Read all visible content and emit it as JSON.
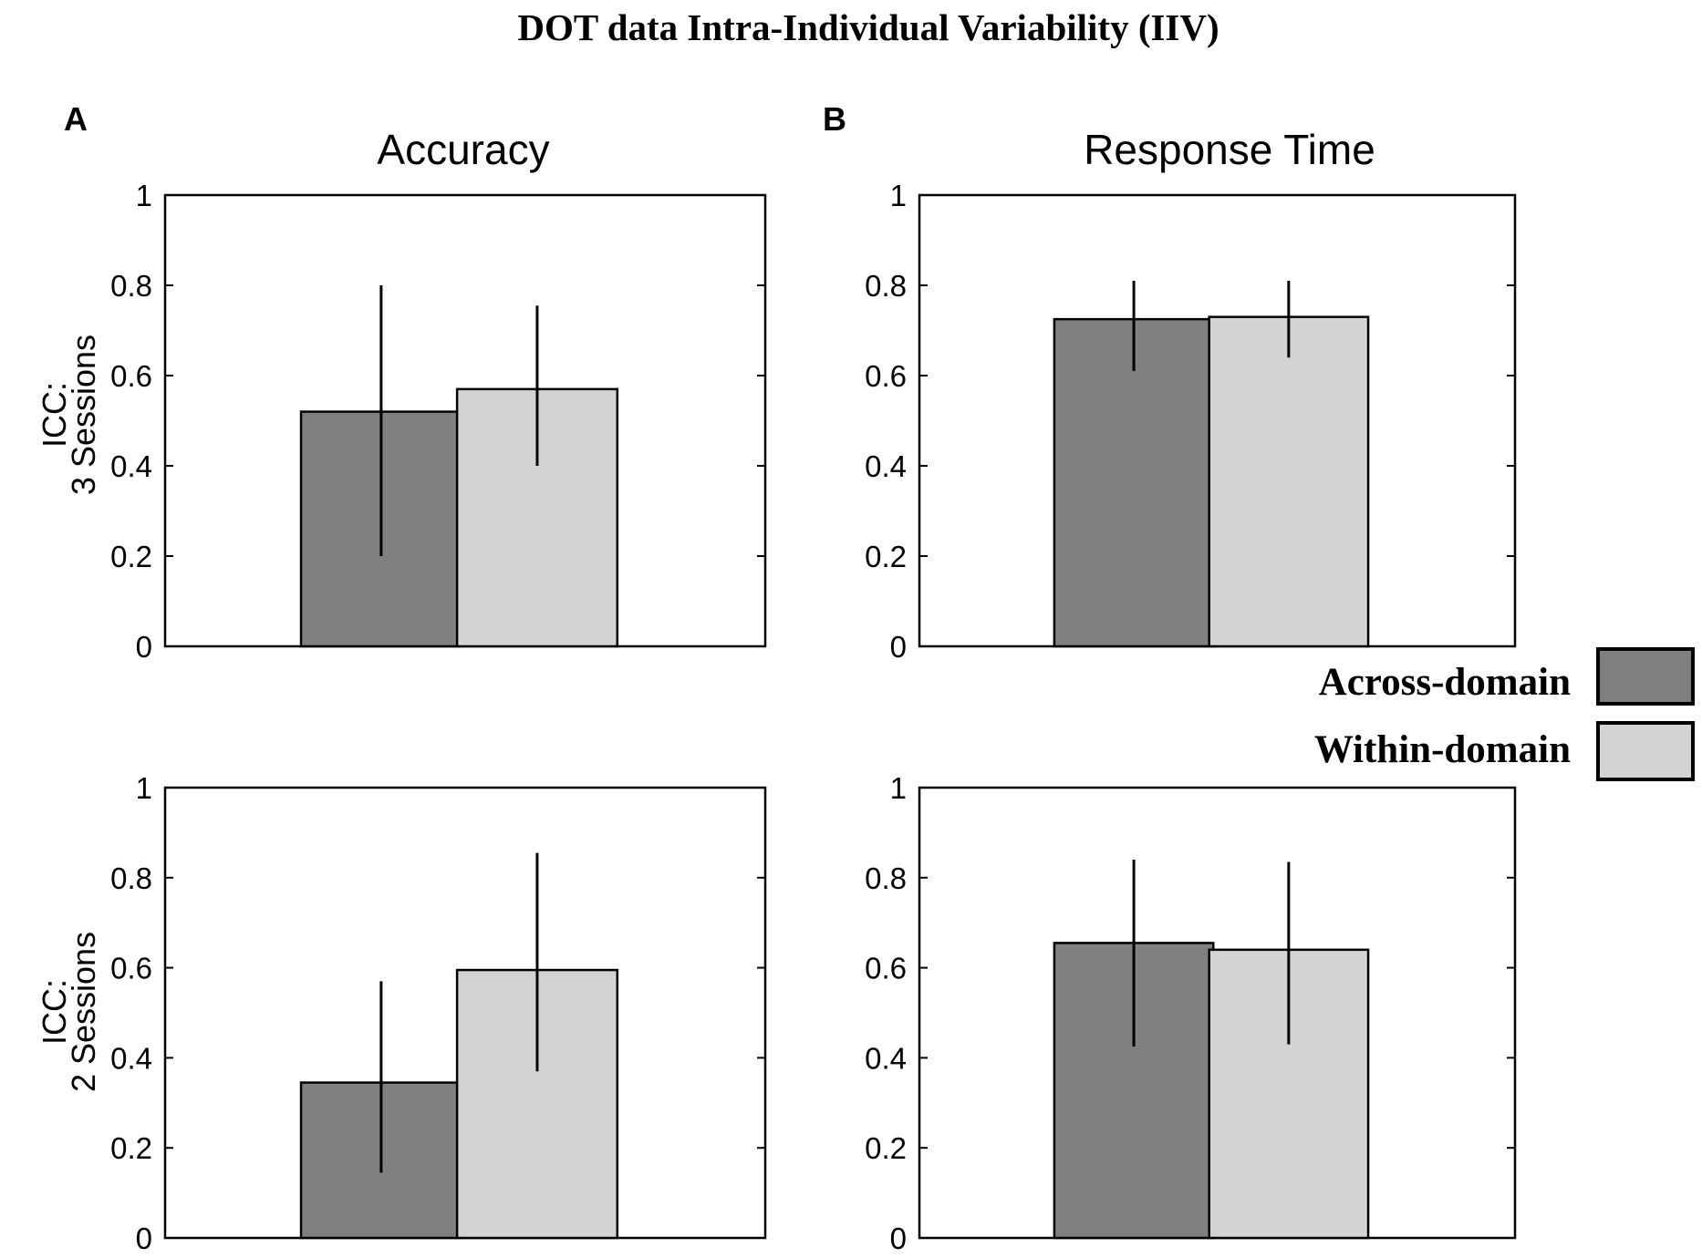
{
  "figure": {
    "title": "DOT data Intra-Individual Variability (IIV)",
    "panel_labels": [
      "A",
      "B"
    ],
    "column_titles": [
      "Accuracy",
      "Response Time"
    ],
    "row_labels": [
      {
        "line1": "ICC:",
        "line2": "3 Sessions"
      },
      {
        "line1": "ICC:",
        "line2": "2 Sessions"
      }
    ]
  },
  "legend": {
    "items": [
      {
        "label": "Across-domain",
        "color": "#808080"
      },
      {
        "label": "Within-domain",
        "color": "#d3d3d3"
      }
    ]
  },
  "colors": {
    "across": "#808080",
    "within": "#d3d3d3",
    "edge": "#000000"
  },
  "chart_data": [
    {
      "type": "bar",
      "panel": "A",
      "title": "Accuracy",
      "ylabel": "ICC: 3 Sessions",
      "ylim": [
        0,
        1
      ],
      "yticks": [
        "0",
        "0.2",
        "0.4",
        "0.6",
        "0.8",
        "1"
      ],
      "categories": [
        "Across-domain",
        "Within-domain"
      ],
      "values": [
        0.52,
        0.57
      ],
      "error_bars": [
        [
          0.2,
          0.8
        ],
        [
          0.4,
          0.755
        ]
      ]
    },
    {
      "type": "bar",
      "panel": "B",
      "title": "Response Time",
      "ylabel": "",
      "ylim": [
        0,
        1
      ],
      "yticks": [
        "0",
        "0.2",
        "0.4",
        "0.6",
        "0.8",
        "1"
      ],
      "categories": [
        "Across-domain",
        "Within-domain"
      ],
      "values": [
        0.725,
        0.73
      ],
      "error_bars": [
        [
          0.61,
          0.81
        ],
        [
          0.64,
          0.81
        ]
      ]
    },
    {
      "type": "bar",
      "panel": "A",
      "title": "",
      "ylabel": "ICC: 2 Sessions",
      "ylim": [
        0,
        1
      ],
      "yticks": [
        "0",
        "0.2",
        "0.4",
        "0.6",
        "0.8",
        "1"
      ],
      "categories": [
        "Across-domain",
        "Within-domain"
      ],
      "values": [
        0.345,
        0.595
      ],
      "error_bars": [
        [
          0.145,
          0.57
        ],
        [
          0.37,
          0.855
        ]
      ]
    },
    {
      "type": "bar",
      "panel": "B",
      "title": "",
      "ylabel": "",
      "ylim": [
        0,
        1
      ],
      "yticks": [
        "0",
        "0.2",
        "0.4",
        "0.6",
        "0.8",
        "1"
      ],
      "categories": [
        "Across-domain",
        "Within-domain"
      ],
      "values": [
        0.655,
        0.64
      ],
      "error_bars": [
        [
          0.425,
          0.84
        ],
        [
          0.43,
          0.835
        ]
      ]
    }
  ]
}
